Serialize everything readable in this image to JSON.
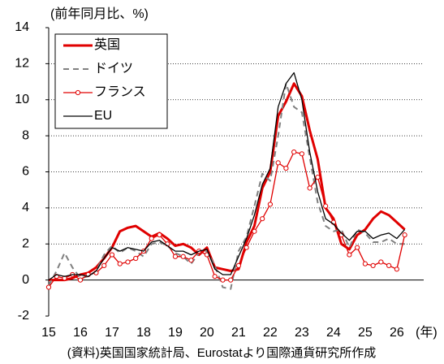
{
  "chart_data": {
    "type": "line",
    "y_label": "(前年同月比、%)",
    "x_unit": "(年)",
    "note": "(資料)英国国家統計局、Eurostatより国際通貨研究所作成",
    "x": [
      2015,
      2015.25,
      2015.5,
      2015.75,
      2016,
      2016.25,
      2016.5,
      2016.75,
      2017,
      2017.25,
      2017.5,
      2017.75,
      2018,
      2018.25,
      2018.5,
      2018.75,
      2019,
      2019.25,
      2019.5,
      2019.75,
      2020,
      2020.25,
      2020.5,
      2020.75,
      2021,
      2021.25,
      2021.5,
      2021.75,
      2022,
      2022.25,
      2022.5,
      2022.75,
      2023,
      2023.25,
      2023.5,
      2023.75,
      2024,
      2024.25,
      2024.5,
      2024.75,
      2025,
      2025.25,
      2025.5,
      2025.75,
      2026,
      2026.25
    ],
    "series": [
      {
        "name": "英国",
        "color": "#e00000",
        "linestyle": "solid",
        "values": [
          0,
          0,
          0,
          0.1,
          0.3,
          0.4,
          0.7,
          1.2,
          1.8,
          2.7,
          2.9,
          3.0,
          2.7,
          2.4,
          2.6,
          2.3,
          1.9,
          2.0,
          1.8,
          1.4,
          1.8,
          0.7,
          0.6,
          0.5,
          0.6,
          2.1,
          3.0,
          5.1,
          6.0,
          9.1,
          9.9,
          10.9,
          10.2,
          8.3,
          6.7,
          4.0,
          3.4,
          2.0,
          1.7,
          2.5,
          2.8,
          3.4,
          3.8,
          3.6,
          3.2,
          2.8
        ]
      },
      {
        "name": "ドイツ",
        "color": "#808080",
        "linestyle": "dashed",
        "values": [
          -0.3,
          0.5,
          1.5,
          0.7,
          0.1,
          0.2,
          0.5,
          1.4,
          1.9,
          1.5,
          1.8,
          1.6,
          1.3,
          2.0,
          2.1,
          1.9,
          1.5,
          1.3,
          0.9,
          1.5,
          1.6,
          0.8,
          -0.4,
          -0.5,
          1.6,
          2.4,
          4.1,
          5.9,
          5.5,
          8.0,
          10.9,
          9.6,
          9.3,
          6.8,
          4.3,
          3.0,
          2.7,
          2.8,
          1.8,
          2.8,
          2.6,
          2.1,
          2.1,
          2.3,
          2.0,
          2.0
        ]
      },
      {
        "name": "フランス",
        "color": "#e00000",
        "linestyle": "solid",
        "marker": "o",
        "values": [
          -0.4,
          0.2,
          0.1,
          0.3,
          0.0,
          0.3,
          0.4,
          0.8,
          1.4,
          0.9,
          1.0,
          1.2,
          1.6,
          2.3,
          2.5,
          2.0,
          1.3,
          1.3,
          1.1,
          1.6,
          1.4,
          0.2,
          0.0,
          0.0,
          0.8,
          1.8,
          2.7,
          3.4,
          4.2,
          6.5,
          6.2,
          7.1,
          7.0,
          5.1,
          5.7,
          4.1,
          3.2,
          2.5,
          1.4,
          1.8,
          0.9,
          0.8,
          1.0,
          0.8,
          0.6,
          2.5
        ]
      },
      {
        "name": "EU",
        "color": "#000000",
        "linestyle": "solid",
        "values": [
          0.0,
          0.3,
          0.2,
          0.3,
          0.3,
          0.2,
          0.5,
          1.2,
          1.8,
          1.6,
          1.8,
          1.7,
          1.6,
          2.1,
          2.2,
          1.9,
          1.6,
          1.6,
          1.4,
          1.6,
          1.7,
          0.6,
          0.3,
          0.3,
          1.3,
          2.3,
          3.6,
          5.3,
          6.2,
          9.6,
          10.9,
          11.5,
          10.0,
          7.1,
          4.9,
          3.4,
          3.1,
          2.6,
          2.2,
          2.7,
          2.7,
          2.3,
          2.5,
          2.6,
          2.3,
          2.8
        ]
      }
    ],
    "xlim": [
      2015,
      2026.85
    ],
    "xticks": [
      {
        "value": 2015,
        "label": "15"
      },
      {
        "value": 2016,
        "label": "16"
      },
      {
        "value": 2017,
        "label": "17"
      },
      {
        "value": 2018,
        "label": "18"
      },
      {
        "value": 2019,
        "label": "19"
      },
      {
        "value": 2020,
        "label": "20"
      },
      {
        "value": 2021,
        "label": "21"
      },
      {
        "value": 2022,
        "label": "22"
      },
      {
        "value": 2023,
        "label": "23"
      },
      {
        "value": 2024,
        "label": "24"
      },
      {
        "value": 2025,
        "label": "25"
      },
      {
        "value": 2026,
        "label": "26"
      }
    ],
    "ylim": [
      -2,
      14
    ],
    "yticks": [
      -2,
      0,
      2,
      4,
      6,
      8,
      10,
      12,
      14
    ],
    "grid": true,
    "legend": "upper left"
  }
}
